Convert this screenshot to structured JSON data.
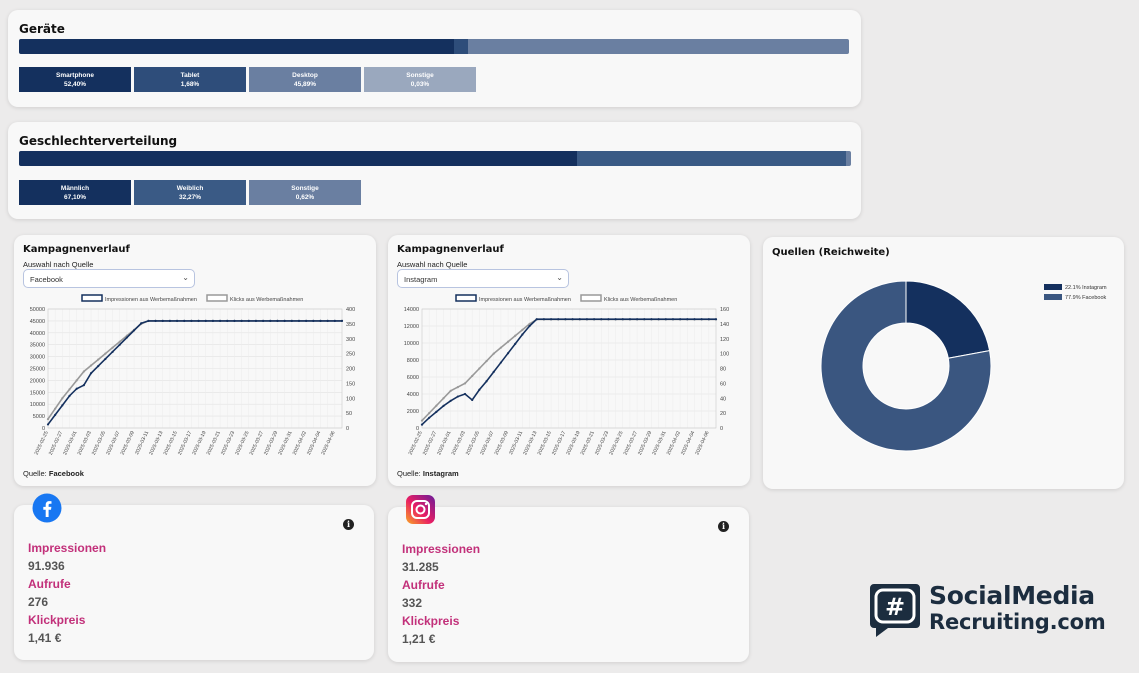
{
  "devices": {
    "title": "Geräte",
    "segments": [
      {
        "label": "Smartphone",
        "value": "52,40%",
        "share": 52.4,
        "color": "#14305e"
      },
      {
        "label": "Tablet",
        "value": "1,68%",
        "share": 1.68,
        "color": "#2e4d7a"
      },
      {
        "label": "Desktop",
        "value": "45,89%",
        "share": 45.89,
        "color": "#6a7fa1"
      },
      {
        "label": "Sonstige",
        "value": "0,03%",
        "share": 0.03,
        "color": "#9aa8be"
      }
    ]
  },
  "gender": {
    "title": "Geschlechterverteilung",
    "segments": [
      {
        "label": "Männlich",
        "value": "67,10%",
        "share": 67.1,
        "color": "#14305e"
      },
      {
        "label": "Weiblich",
        "value": "32,27%",
        "share": 32.27,
        "color": "#3a5a85"
      },
      {
        "label": "Sonstige",
        "value": "0,62%",
        "share": 0.62,
        "color": "#6a7fa1"
      }
    ]
  },
  "campaign_left": {
    "title": "Kampagnenverlauf",
    "select_label": "Auswahl nach Quelle",
    "selected": "Facebook",
    "source_prefix": "Quelle:",
    "source_name": "Facebook"
  },
  "campaign_right": {
    "title": "Kampagnenverlauf",
    "select_label": "Auswahl nach Quelle",
    "selected": "Instagram",
    "source_prefix": "Quelle:",
    "source_name": "Instagram"
  },
  "sources": {
    "title": "Quellen (Reichweite)"
  },
  "fb_stats": {
    "impressions_label": "Impressionen",
    "impressions_value": "91.936",
    "views_label": "Aufrufe",
    "views_value": "276",
    "cpc_label": "Klickpreis",
    "cpc_value": "1,41 €",
    "icon": "facebook-icon"
  },
  "ig_stats": {
    "impressions_label": "Impressionen",
    "impressions_value": "31.285",
    "views_label": "Aufrufe",
    "views_value": "332",
    "cpc_label": "Klickpreis",
    "cpc_value": "1,21 €",
    "icon": "instagram-icon"
  },
  "brand": {
    "line1": "SocialMedia",
    "line2": "Recruiting.com",
    "symbol": "#"
  },
  "chart_data": [
    {
      "type": "line",
      "series": [
        {
          "name": "Impressionen aus Werbemaßnahmen",
          "axis": "left",
          "color": "#14305e",
          "values": [
            1500,
            5500,
            9500,
            13500,
            16500,
            18000,
            23000,
            26000,
            29000,
            32000,
            35000,
            38000,
            41000,
            44000,
            45000,
            45000,
            45000,
            45000,
            45000,
            45000,
            45000,
            45000,
            45000,
            45000,
            45000,
            45000,
            45000,
            45000,
            45000,
            45000,
            45000,
            45000,
            45000,
            45000,
            45000,
            45000,
            45000,
            45000,
            45000,
            45000,
            45000,
            45000
          ]
        },
        {
          "name": "Klicks aus Werbemaßnahmen",
          "axis": "right",
          "color": "#999999",
          "values": [
            30,
            65,
            100,
            130,
            160,
            190,
            210,
            230,
            250,
            270,
            290,
            310,
            330,
            350,
            360,
            360,
            360,
            360,
            360,
            360,
            360,
            360,
            360,
            360,
            360,
            360,
            360,
            360,
            360,
            360,
            360,
            360,
            360,
            360,
            360,
            360,
            360,
            360,
            360,
            360,
            360,
            360
          ]
        }
      ],
      "x_ticks": [
        "2025-02-25",
        "2025-02-27",
        "2025-03-01",
        "2025-03-03",
        "2025-03-05",
        "2025-03-07",
        "2025-03-09",
        "2025-03-11",
        "2025-03-13",
        "2025-03-15",
        "2025-03-17",
        "2025-03-19",
        "2025-03-21",
        "2025-03-23",
        "2025-03-25",
        "2025-03-27",
        "2025-03-29",
        "2025-03-31",
        "2025-04-02",
        "2025-04-04",
        "2025-04-06"
      ],
      "ylim_left": [
        0,
        50000
      ],
      "yticks_left": [
        "0",
        "5000",
        "10000",
        "15000",
        "20000",
        "25000",
        "30000",
        "35000",
        "40000",
        "45000",
        "50000"
      ],
      "ylim_right": [
        0,
        400
      ],
      "yticks_right": [
        "0",
        "50",
        "100",
        "150",
        "200",
        "250",
        "300",
        "350",
        "400"
      ],
      "grid": true,
      "legend": "top"
    },
    {
      "type": "line",
      "series": [
        {
          "name": "Impressionen aus Werbemaßnahmen",
          "axis": "left",
          "color": "#14305e",
          "values": [
            400,
            1200,
            1900,
            2600,
            3200,
            3700,
            4000,
            3300,
            4500,
            5500,
            6600,
            7700,
            8800,
            9900,
            11000,
            12000,
            12800,
            12800,
            12800,
            12800,
            12800,
            12800,
            12800,
            12800,
            12800,
            12800,
            12800,
            12800,
            12800,
            12800,
            12800,
            12800,
            12800,
            12800,
            12800,
            12800,
            12800,
            12800,
            12800,
            12800,
            12800,
            12800
          ]
        },
        {
          "name": "Klicks aus Werbemaßnahmen",
          "axis": "right",
          "color": "#999999",
          "values": [
            10,
            20,
            30,
            40,
            50,
            55,
            60,
            70,
            80,
            90,
            100,
            108,
            116,
            124,
            132,
            140,
            146,
            146,
            146,
            146,
            146,
            146,
            146,
            146,
            146,
            146,
            146,
            146,
            146,
            146,
            146,
            146,
            146,
            146,
            146,
            146,
            146,
            146,
            146,
            146,
            146,
            146
          ]
        }
      ],
      "x_ticks": [
        "2025-02-25",
        "2025-02-27",
        "2025-03-01",
        "2025-03-03",
        "2025-03-05",
        "2025-03-07",
        "2025-03-09",
        "2025-03-11",
        "2025-03-13",
        "2025-03-15",
        "2025-03-17",
        "2025-03-19",
        "2025-03-21",
        "2025-03-23",
        "2025-03-25",
        "2025-03-27",
        "2025-03-29",
        "2025-03-31",
        "2025-04-02",
        "2025-04-04",
        "2025-04-06"
      ],
      "ylim_left": [
        0,
        14000
      ],
      "yticks_left": [
        "0",
        "2000",
        "4000",
        "6000",
        "8000",
        "10000",
        "12000",
        "14000"
      ],
      "ylim_right": [
        0,
        160
      ],
      "yticks_right": [
        "0",
        "20",
        "40",
        "60",
        "80",
        "100",
        "120",
        "140",
        "160"
      ],
      "grid": true,
      "legend": "top"
    },
    {
      "type": "pie",
      "donut": true,
      "slices": [
        {
          "name": "22.1% Instagram",
          "value": 22.1,
          "color": "#14305e"
        },
        {
          "name": "77.9% Facebook",
          "value": 77.9,
          "color": "#3a5680"
        }
      ],
      "legend": "top-right"
    }
  ]
}
